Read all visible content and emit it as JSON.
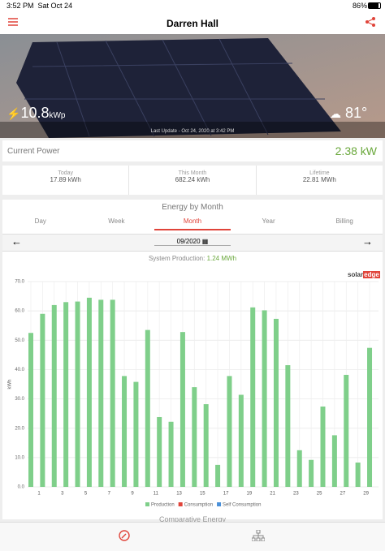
{
  "status_bar": {
    "time": "3:52 PM",
    "date": "Sat Oct 24",
    "battery": "86%"
  },
  "header": {
    "title": "Darren Hall"
  },
  "hero": {
    "peak_power": "10.8",
    "peak_unit": "kWp",
    "temperature": "81°",
    "last_update": "Last Update - Oct 24, 2020 at 3:42 PM"
  },
  "current_power": {
    "label": "Current Power",
    "value": "2.38 kW"
  },
  "stats": [
    {
      "label": "Today",
      "value": "17.89 kWh"
    },
    {
      "label": "This Month",
      "value": "682.24 kWh"
    },
    {
      "label": "Lifetime",
      "value": "22.81 MWh"
    }
  ],
  "energy": {
    "title": "Energy by Month",
    "tabs": [
      "Day",
      "Week",
      "Month",
      "Year",
      "Billing"
    ],
    "active_tab": "Month",
    "period": "09/2020",
    "production_label": "System Production:",
    "production_value": "1.24 MWh",
    "brand": "solar",
    "brand_accent": "edge",
    "next_section": "Comparative Energy"
  },
  "chart_data": {
    "type": "bar",
    "ylabel": "kWh",
    "categories": [
      "1",
      null,
      "3",
      null,
      "5",
      null,
      "7",
      null,
      "9",
      null,
      "11",
      null,
      "13",
      null,
      "15",
      null,
      "17",
      null,
      "19",
      null,
      "21",
      null,
      "23",
      null,
      "25",
      null,
      "27",
      null,
      "29",
      null
    ],
    "series": [
      {
        "name": "Production",
        "color": "#7fcf8a",
        "values": [
          52.5,
          59,
          62,
          63,
          63.2,
          64.5,
          63.8,
          63.8,
          37.8,
          35.8,
          53.5,
          23.8,
          22.2,
          52.8,
          34,
          28.2,
          7.5,
          37.8,
          31.4,
          61.2,
          60.2,
          57.3,
          41.5,
          12.5,
          9.2,
          27.4,
          17.6,
          38.2,
          8.3,
          47.4
        ]
      }
    ],
    "legend": [
      {
        "name": "Production",
        "color": "#7fcf8a"
      },
      {
        "name": "Consumption",
        "color": "#e0443a"
      },
      {
        "name": "Self Consumption",
        "color": "#4a90d9"
      }
    ],
    "ylim": [
      0,
      70
    ],
    "yticks": [
      {
        "value": 0,
        "label": "0.0"
      },
      {
        "value": 10,
        "label": "10.0"
      },
      {
        "value": 20,
        "label": "20.0"
      },
      {
        "value": 30,
        "label": "30.0"
      },
      {
        "value": 40,
        "label": "40.0"
      },
      {
        "value": 50,
        "label": "50.0"
      },
      {
        "value": 60,
        "label": "60.0"
      },
      {
        "value": 70,
        "label": "70.0"
      }
    ],
    "grid": true
  }
}
